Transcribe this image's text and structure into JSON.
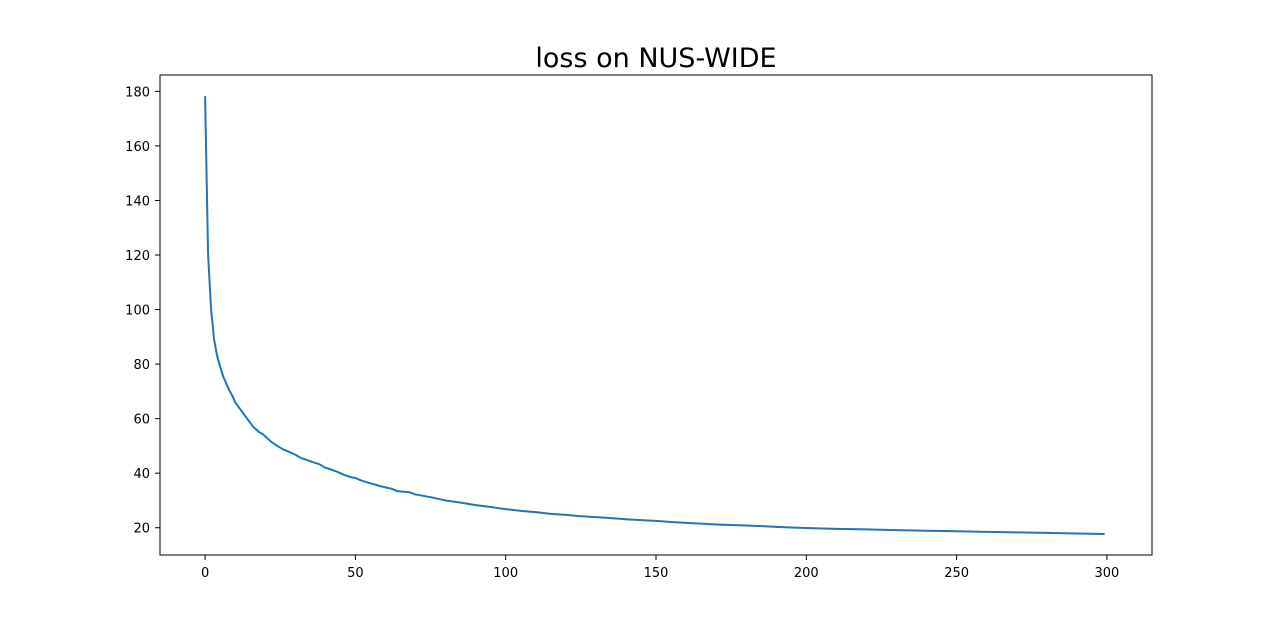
{
  "chart_data": {
    "type": "line",
    "title": "loss on NUS-WIDE",
    "xlabel": "",
    "ylabel": "",
    "xlim": [
      -15,
      315
    ],
    "ylim": [
      10,
      186
    ],
    "x_ticks": [
      0,
      50,
      100,
      150,
      200,
      250,
      300
    ],
    "y_ticks": [
      20,
      40,
      60,
      80,
      100,
      120,
      140,
      160,
      180
    ],
    "grid": false,
    "legend": "none",
    "series": [
      {
        "color": "#1f77b4",
        "x": [
          0,
          1,
          2,
          3,
          4,
          5,
          6,
          7,
          8,
          9,
          10,
          11,
          12,
          13,
          14,
          15,
          16,
          17,
          18,
          19,
          20,
          22,
          24,
          26,
          28,
          30,
          32,
          34,
          36,
          38,
          40,
          42,
          44,
          46,
          48,
          50,
          52,
          54,
          56,
          58,
          60,
          62,
          64,
          66,
          68,
          70,
          75,
          80,
          85,
          90,
          95,
          100,
          105,
          110,
          115,
          120,
          125,
          130,
          135,
          140,
          145,
          150,
          155,
          160,
          165,
          170,
          175,
          180,
          185,
          190,
          195,
          200,
          210,
          220,
          230,
          240,
          250,
          260,
          270,
          280,
          290,
          299
        ],
        "values": [
          178,
          120,
          100,
          89,
          83,
          79,
          75.5,
          73,
          70.5,
          68.5,
          66,
          64.5,
          63,
          61.5,
          60,
          58.5,
          57,
          56,
          55,
          54.5,
          53.5,
          51.5,
          50,
          48.7,
          47.8,
          46.8,
          45.5,
          44.8,
          44,
          43.3,
          42,
          41.3,
          40.5,
          39.5,
          38.7,
          38.2,
          37.3,
          36.6,
          36,
          35.3,
          34.8,
          34.3,
          33.4,
          33.2,
          33,
          32.2,
          31.2,
          30,
          29.2,
          28.3,
          27.6,
          26.8,
          26.2,
          25.7,
          25.1,
          24.7,
          24.2,
          23.9,
          23.5,
          23.1,
          22.8,
          22.5,
          22.1,
          21.8,
          21.5,
          21.2,
          21,
          20.8,
          20.6,
          20.3,
          20.1,
          19.9,
          19.6,
          19.4,
          19.1,
          18.9,
          18.7,
          18.5,
          18.3,
          18.1,
          17.9,
          17.7
        ]
      }
    ]
  }
}
